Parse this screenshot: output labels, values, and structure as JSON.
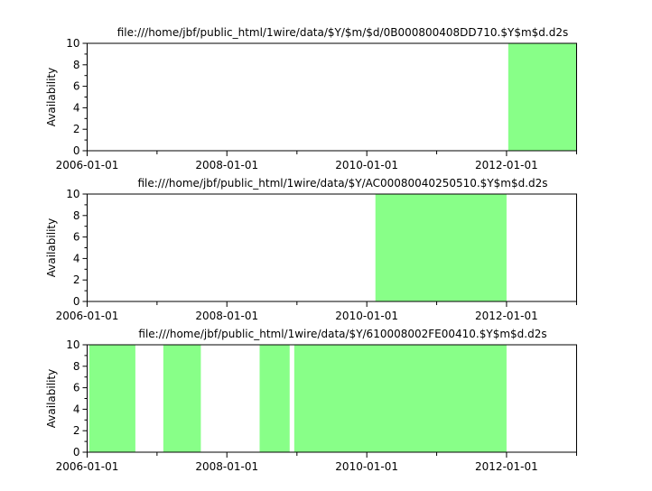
{
  "chart_data": [
    {
      "type": "area",
      "title": "file:///home/jbf/public_html/1wire/data/$Y/$m/$d/0B000800408DD710.$Y$m$d.d2s",
      "ylabel": "Availability",
      "xlabel": "",
      "xlim": [
        "2006-01-01",
        "2013-01-01"
      ],
      "ylim": [
        0,
        10
      ],
      "xticks": [
        "2006-01-01",
        "2008-01-01",
        "2010-01-01",
        "2012-01-01"
      ],
      "yticks": [
        0,
        2,
        4,
        6,
        8,
        10
      ],
      "grid": false,
      "color": "#88ff88",
      "segments": [
        {
          "start": "2012-01-10",
          "end": "2013-01-01",
          "value": 10
        }
      ]
    },
    {
      "type": "area",
      "title": "file:///home/jbf/public_html/1wire/data/$Y/AC00080040250510.$Y$m$d.d2s",
      "ylabel": "Availability",
      "xlabel": "",
      "xlim": [
        "2006-01-01",
        "2013-01-01"
      ],
      "ylim": [
        0,
        10
      ],
      "xticks": [
        "2006-01-01",
        "2008-01-01",
        "2010-01-01",
        "2012-01-01"
      ],
      "yticks": [
        0,
        2,
        4,
        6,
        8,
        10
      ],
      "grid": false,
      "color": "#88ff88",
      "segments": [
        {
          "start": "2010-02-15",
          "end": "2012-01-01",
          "value": 10
        }
      ]
    },
    {
      "type": "area",
      "title": "file:///home/jbf/public_html/1wire/data/$Y/610008002FE00410.$Y$m$d.d2s",
      "ylabel": "Availability",
      "xlabel": "",
      "xlim": [
        "2006-01-01",
        "2013-01-01"
      ],
      "ylim": [
        0,
        10
      ],
      "xticks": [
        "2006-01-01",
        "2008-01-01",
        "2010-01-01",
        "2012-01-01"
      ],
      "yticks": [
        0,
        2,
        4,
        6,
        8,
        10
      ],
      "grid": false,
      "color": "#88ff88",
      "segments": [
        {
          "start": "2006-01-12",
          "end": "2006-09-10",
          "value": 10
        },
        {
          "start": "2007-02-03",
          "end": "2007-08-18",
          "value": 10
        },
        {
          "start": "2008-06-20",
          "end": "2008-11-24",
          "value": 10
        },
        {
          "start": "2008-12-18",
          "end": "2012-01-01",
          "value": 10
        }
      ]
    }
  ]
}
